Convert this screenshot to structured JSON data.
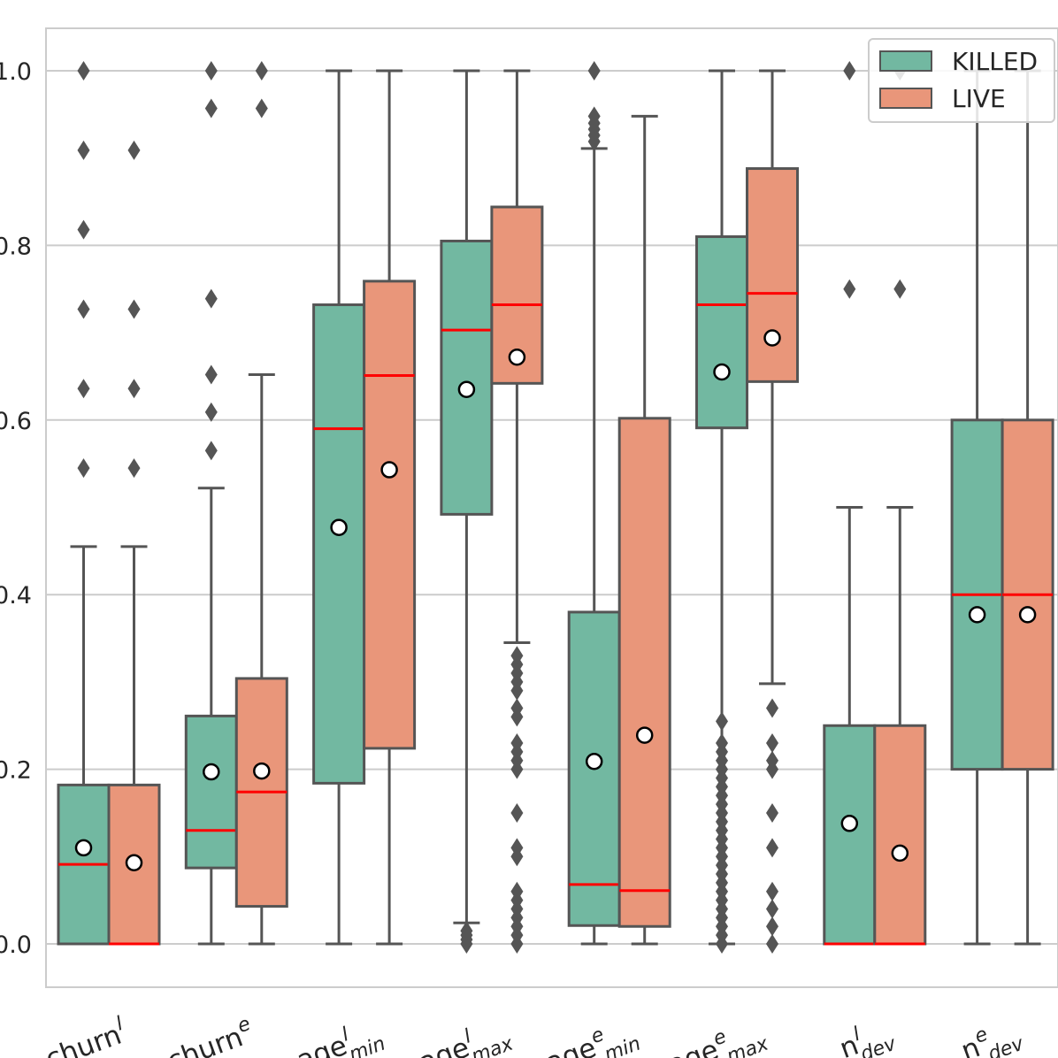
{
  "chart_data": {
    "type": "box",
    "title": "",
    "xlabel": "",
    "ylabel": "",
    "ylim": [
      -0.05,
      1.05
    ],
    "grid": true,
    "legend_position": "top-right",
    "y_ticks": [
      {
        "value": 0.0,
        "label": "0.0"
      },
      {
        "value": 0.2,
        "label": "0.2"
      },
      {
        "value": 0.4,
        "label": "0.4"
      },
      {
        "value": 0.6,
        "label": "0.6"
      },
      {
        "value": 0.8,
        "label": "0.8"
      },
      {
        "value": 1.0,
        "label": "1.0"
      }
    ],
    "categories": [
      {
        "base": "churn",
        "sup": "l",
        "sub": ""
      },
      {
        "base": "churn",
        "sup": "e",
        "sub": ""
      },
      {
        "base": "age",
        "sup": "l",
        "sub": "min"
      },
      {
        "base": "age",
        "sup": "l",
        "sub": "max"
      },
      {
        "base": "age",
        "sup": "e",
        "sub": "min"
      },
      {
        "base": "age",
        "sup": "e",
        "sub": "max"
      },
      {
        "base": "n",
        "sup": "l",
        "sub": "dev"
      },
      {
        "base": "n",
        "sup": "e",
        "sub": "dev"
      }
    ],
    "colors": {
      "KILLED": "#72b8a1",
      "LIVE": "#e9967a",
      "edge": "#555555",
      "median": "#ff0000",
      "mean_fill": "#ffffff",
      "mean_edge": "#000000"
    },
    "series": [
      {
        "name": "KILLED",
        "boxes": [
          {
            "whisker_low": 0.0,
            "q1": 0.0,
            "median": 0.091,
            "q3": 0.182,
            "whisker_high": 0.455,
            "mean": 0.11,
            "outliers": [
              0.545,
              0.636,
              0.727,
              0.818,
              0.909,
              1.0
            ]
          },
          {
            "whisker_low": 0.0,
            "q1": 0.087,
            "median": 0.13,
            "q3": 0.261,
            "whisker_high": 0.522,
            "mean": 0.197,
            "outliers": [
              0.565,
              0.609,
              0.652,
              0.739,
              0.957,
              1.0
            ]
          },
          {
            "whisker_low": 0.0,
            "q1": 0.184,
            "median": 0.59,
            "q3": 0.732,
            "whisker_high": 1.0,
            "mean": 0.477,
            "outliers": []
          },
          {
            "whisker_low": 0.024,
            "q1": 0.492,
            "median": 0.703,
            "q3": 0.805,
            "whisker_high": 1.0,
            "mean": 0.635,
            "outliers": [
              0.0,
              0.005,
              0.01,
              0.015
            ]
          },
          {
            "whisker_low": 0.0,
            "q1": 0.021,
            "median": 0.068,
            "q3": 0.38,
            "whisker_high": 0.911,
            "mean": 0.209,
            "outliers": [
              0.919,
              0.926,
              0.933,
              0.94,
              0.948,
              1.0
            ]
          },
          {
            "whisker_low": 0.0,
            "q1": 0.591,
            "median": 0.732,
            "q3": 0.81,
            "whisker_high": 1.0,
            "mean": 0.655,
            "outliers": [
              0.0,
              0.01,
              0.02,
              0.03,
              0.04,
              0.05,
              0.06,
              0.07,
              0.08,
              0.09,
              0.1,
              0.11,
              0.12,
              0.13,
              0.14,
              0.15,
              0.16,
              0.17,
              0.18,
              0.19,
              0.2,
              0.21,
              0.22,
              0.23,
              0.255
            ]
          },
          {
            "whisker_low": 0.0,
            "q1": 0.0,
            "median": 0.0,
            "q3": 0.25,
            "whisker_high": 0.5,
            "mean": 0.138,
            "outliers": [
              0.75,
              1.0
            ]
          },
          {
            "whisker_low": 0.0,
            "q1": 0.2,
            "median": 0.4,
            "q3": 0.6,
            "whisker_high": 1.0,
            "mean": 0.377,
            "outliers": []
          }
        ]
      },
      {
        "name": "LIVE",
        "boxes": [
          {
            "whisker_low": 0.0,
            "q1": 0.0,
            "median": 0.0,
            "q3": 0.182,
            "whisker_high": 0.455,
            "mean": 0.093,
            "outliers": [
              0.545,
              0.636,
              0.727,
              0.909
            ]
          },
          {
            "whisker_low": 0.0,
            "q1": 0.043,
            "median": 0.174,
            "q3": 0.304,
            "whisker_high": 0.652,
            "mean": 0.198,
            "outliers": [
              0.957,
              1.0
            ]
          },
          {
            "whisker_low": 0.0,
            "q1": 0.224,
            "median": 0.651,
            "q3": 0.759,
            "whisker_high": 1.0,
            "mean": 0.543,
            "outliers": []
          },
          {
            "whisker_low": 0.345,
            "q1": 0.642,
            "median": 0.732,
            "q3": 0.844,
            "whisker_high": 1.0,
            "mean": 0.672,
            "outliers": [
              0.0,
              0.01,
              0.02,
              0.03,
              0.04,
              0.05,
              0.06,
              0.1,
              0.11,
              0.15,
              0.2,
              0.21,
              0.22,
              0.23,
              0.26,
              0.27,
              0.29,
              0.3,
              0.31,
              0.32,
              0.33
            ]
          },
          {
            "whisker_low": 0.0,
            "q1": 0.02,
            "median": 0.061,
            "q3": 0.602,
            "whisker_high": 0.948,
            "mean": 0.239,
            "outliers": []
          },
          {
            "whisker_low": 0.298,
            "q1": 0.644,
            "median": 0.745,
            "q3": 0.888,
            "whisker_high": 1.0,
            "mean": 0.694,
            "outliers": [
              0.0,
              0.02,
              0.04,
              0.06,
              0.11,
              0.15,
              0.2,
              0.21,
              0.23,
              0.27
            ]
          },
          {
            "whisker_low": 0.0,
            "q1": 0.0,
            "median": 0.0,
            "q3": 0.25,
            "whisker_high": 0.5,
            "mean": 0.104,
            "outliers": [
              0.75,
              1.0
            ]
          },
          {
            "whisker_low": 0.0,
            "q1": 0.2,
            "median": 0.4,
            "q3": 0.6,
            "whisker_high": 1.0,
            "mean": 0.377,
            "outliers": []
          }
        ]
      }
    ],
    "legend": [
      {
        "label": "KILLED",
        "color": "#72b8a1"
      },
      {
        "label": "LIVE",
        "color": "#e9967a"
      }
    ]
  }
}
